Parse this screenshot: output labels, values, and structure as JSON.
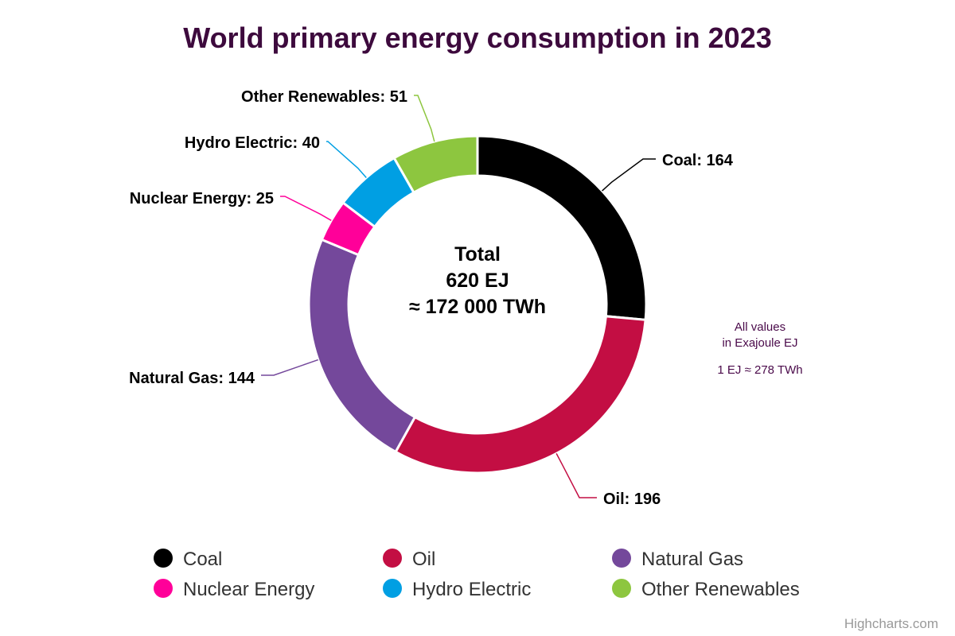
{
  "title": "World primary energy consumption in 2023",
  "center": {
    "line1": "Total",
    "line2": "620 EJ",
    "line3": "≈ 172 000 TWh"
  },
  "note": {
    "line1": "All values",
    "line2": "in Exajoule EJ",
    "line3": "1 EJ ≈ 278 TWh"
  },
  "credit": "Highcharts.com",
  "chart_data": {
    "type": "pie",
    "variant": "donut",
    "legend_position": "bottom",
    "series": [
      {
        "data": [
          {
            "name": "Coal",
            "value": 164,
            "label": "Coal: 164",
            "color": "#000000"
          },
          {
            "name": "Oil",
            "value": 196,
            "label": "Oil: 196",
            "color": "#c30e43"
          },
          {
            "name": "Natural Gas",
            "value": 144,
            "label": "Natural Gas: 144",
            "color": "#74489b"
          },
          {
            "name": "Nuclear Energy",
            "value": 25,
            "label": "Nuclear Energy: 25",
            "color": "#ff0099"
          },
          {
            "name": "Hydro Electric",
            "value": 40,
            "label": "Hydro Electric: 40",
            "color": "#009fe3"
          },
          {
            "name": "Other Renewables",
            "value": 51,
            "label": "Other Renewables: 51",
            "color": "#8dc63f"
          }
        ]
      }
    ]
  }
}
